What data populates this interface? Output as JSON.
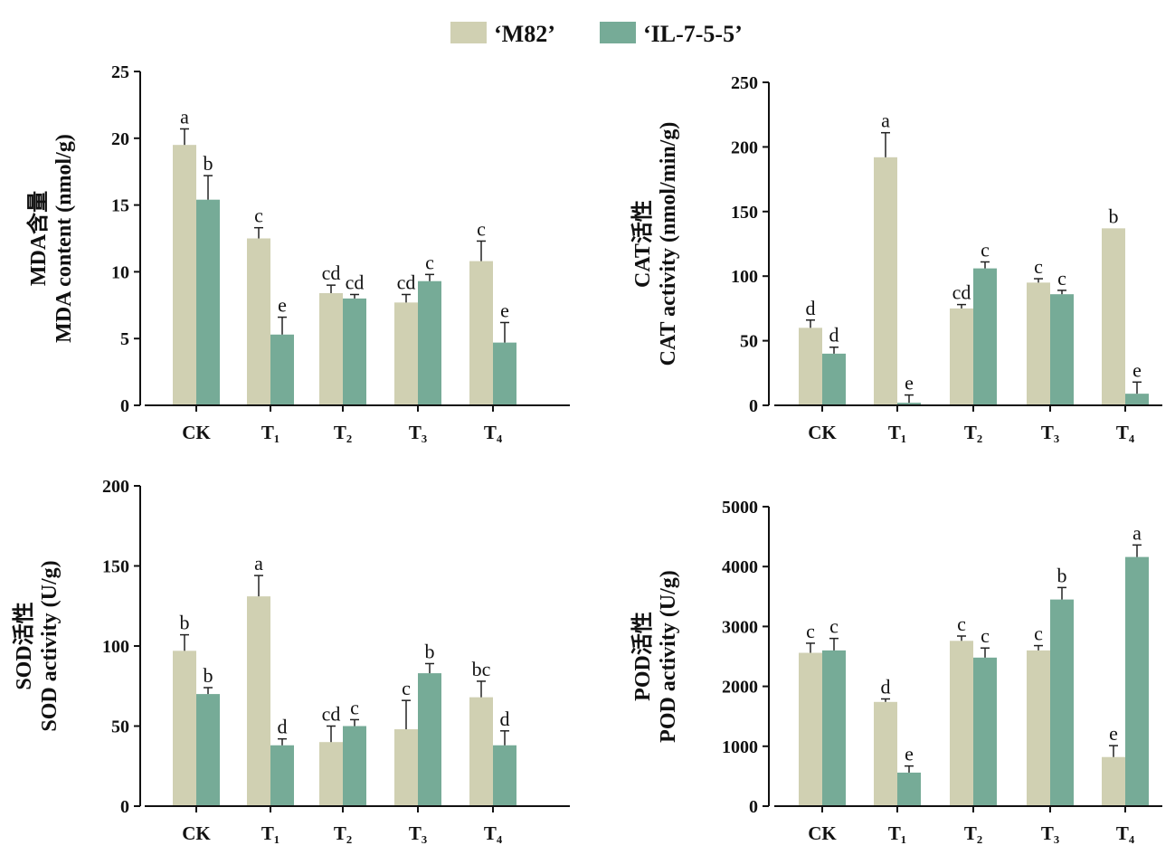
{
  "colors": {
    "m82": "#d0d0b2",
    "il": "#76ab97"
  },
  "legend": [
    {
      "label": "‘M82’",
      "color": "#d0d0b2"
    },
    {
      "label": "‘IL-7-5-5’",
      "color": "#76ab97"
    }
  ],
  "chart_data": [
    {
      "type": "bar",
      "ylabel_lines": [
        "MDA含量",
        "MDA content (nmol/g)"
      ],
      "ylim": [
        0,
        25
      ],
      "yticks": [
        "0",
        "5",
        "10",
        "15",
        "20",
        "25"
      ],
      "categories": [
        "CK",
        "T₁",
        "T₂",
        "T₃",
        "T₄"
      ],
      "series": [
        {
          "name": "‘M82’",
          "values": [
            19.5,
            12.5,
            8.4,
            7.7,
            10.8
          ],
          "errors": [
            1.2,
            0.8,
            0.6,
            0.6,
            1.5
          ],
          "labels": [
            "a",
            "c",
            "cd",
            "cd",
            "c"
          ]
        },
        {
          "name": "‘IL-7-5-5’",
          "values": [
            15.4,
            5.3,
            8.0,
            9.3,
            4.7
          ],
          "errors": [
            1.8,
            1.3,
            0.3,
            0.5,
            1.5
          ],
          "labels": [
            "b",
            "e",
            "cd",
            "c",
            "e"
          ]
        }
      ]
    },
    {
      "type": "bar",
      "ylabel_lines": [
        "CAT活性",
        "CAT activity (nmol/min/g)"
      ],
      "ylim": [
        0,
        250
      ],
      "yticks": [
        "0",
        "50",
        "100",
        "150",
        "200",
        "250"
      ],
      "categories": [
        "CK",
        "T₁",
        "T₂",
        "T₃",
        "T₄"
      ],
      "series": [
        {
          "name": "‘M82’",
          "values": [
            60,
            192,
            75,
            95,
            137
          ],
          "errors": [
            6,
            19,
            3,
            3,
            0
          ],
          "labels": [
            "d",
            "a",
            "cd",
            "c",
            "b"
          ]
        },
        {
          "name": "‘IL-7-5-5’",
          "values": [
            40,
            2,
            106,
            86,
            9
          ],
          "errors": [
            5,
            6,
            5,
            3,
            9
          ],
          "labels": [
            "d",
            "e",
            "c",
            "c",
            "e"
          ]
        }
      ]
    },
    {
      "type": "bar",
      "ylabel_lines": [
        "SOD活性",
        "SOD activity (U/g)"
      ],
      "ylim": [
        0,
        200
      ],
      "yticks": [
        "0",
        "50",
        "100",
        "150",
        "200"
      ],
      "categories": [
        "CK",
        "T₁",
        "T₂",
        "T₃",
        "T₄"
      ],
      "series": [
        {
          "name": "‘M82’",
          "values": [
            97,
            131,
            40,
            48,
            68
          ],
          "errors": [
            10,
            13,
            10,
            18,
            10
          ],
          "labels": [
            "b",
            "a",
            "cd",
            "c",
            "bc"
          ]
        },
        {
          "name": "‘IL-7-5-5’",
          "values": [
            70,
            38,
            50,
            83,
            38
          ],
          "errors": [
            4,
            4,
            4,
            6,
            9
          ],
          "labels": [
            "b",
            "d",
            "c",
            "b",
            "d"
          ]
        }
      ]
    },
    {
      "type": "bar",
      "ylabel_lines": [
        "POD活性",
        "POD activity (U/g)"
      ],
      "ylim": [
        0,
        5000
      ],
      "yticks": [
        "0",
        "1000",
        "2000",
        "3000",
        "4000",
        "5000"
      ],
      "categories": [
        "CK",
        "T₁",
        "T₂",
        "T₃",
        "T₄"
      ],
      "series": [
        {
          "name": "‘M82’",
          "values": [
            2560,
            1740,
            2760,
            2600,
            820
          ],
          "errors": [
            160,
            50,
            80,
            80,
            190
          ],
          "labels": [
            "c",
            "d",
            "c",
            "c",
            "e"
          ]
        },
        {
          "name": "‘IL-7-5-5’",
          "values": [
            2600,
            560,
            2480,
            3450,
            4160
          ],
          "errors": [
            200,
            110,
            160,
            200,
            200
          ],
          "labels": [
            "c",
            "e",
            "c",
            "b",
            "a"
          ]
        }
      ]
    }
  ]
}
